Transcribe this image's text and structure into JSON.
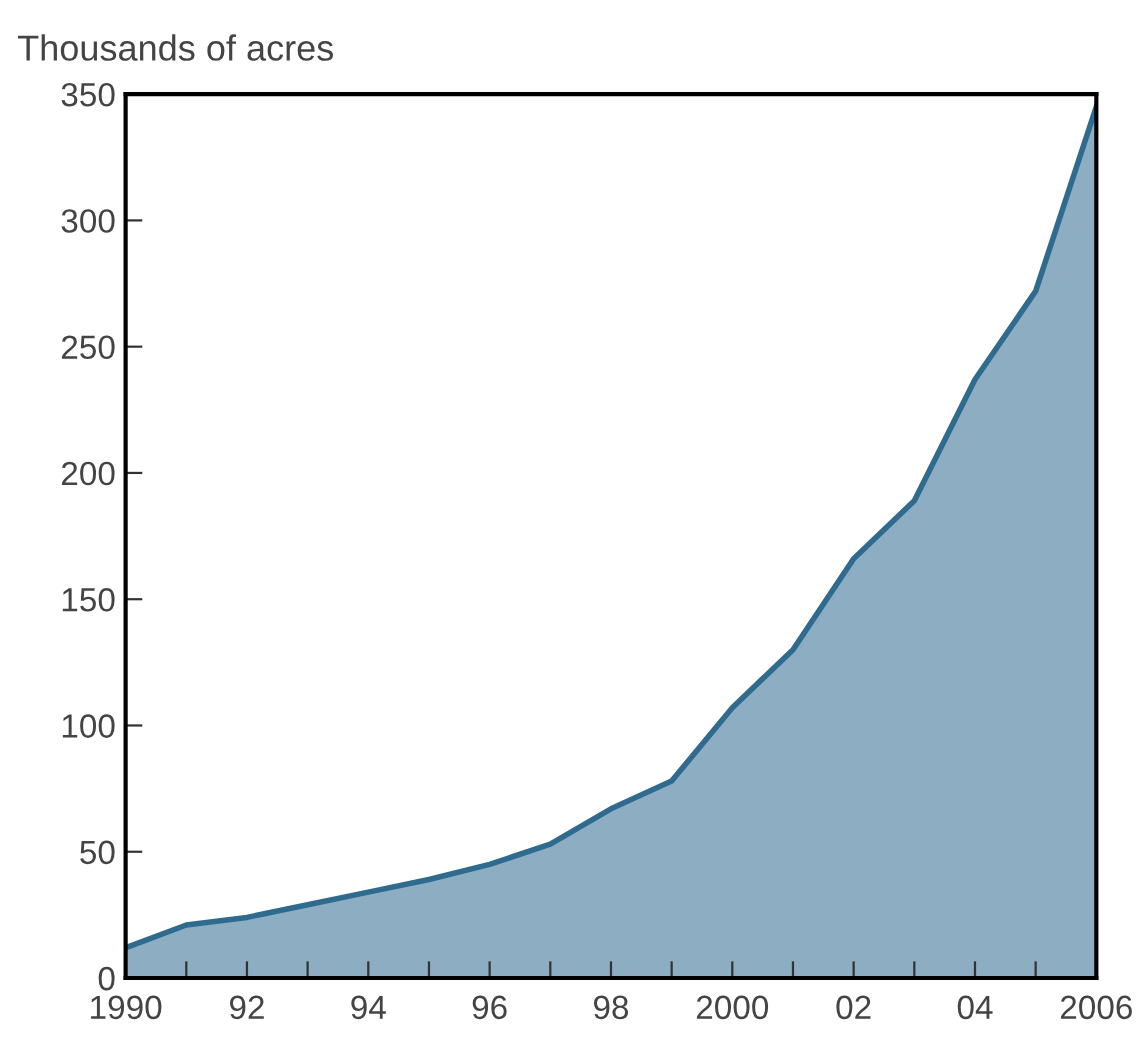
{
  "chart_data": {
    "type": "area",
    "ylabel": "Thousands of acres",
    "x": [
      1990,
      1991,
      1992,
      1993,
      1994,
      1995,
      1996,
      1997,
      1998,
      1999,
      2000,
      2001,
      2002,
      2003,
      2004,
      2005,
      2006
    ],
    "series": [
      {
        "color": "#2f6a8f",
        "values": [
          12,
          21,
          24,
          29,
          34,
          39,
          45,
          53,
          67,
          78,
          107,
          130,
          166,
          189,
          237,
          272,
          345
        ]
      }
    ],
    "xlim": [
      1990,
      2006
    ],
    "ylim": [
      0,
      350
    ],
    "xticks": [
      1990,
      {
        "value": 1991,
        "label": null
      },
      {
        "value": 1992,
        "label": "92"
      },
      {
        "value": 1993,
        "label": null
      },
      {
        "value": 1994,
        "label": "94"
      },
      {
        "value": 1995,
        "label": null
      },
      {
        "value": 1996,
        "label": "96"
      },
      {
        "value": 1997,
        "label": null
      },
      {
        "value": 1998,
        "label": "98"
      },
      {
        "value": 1999,
        "label": null
      },
      2000,
      {
        "value": 2001,
        "label": null
      },
      {
        "value": 2002,
        "label": "02"
      },
      {
        "value": 2003,
        "label": null
      },
      {
        "value": 2004,
        "label": "04"
      },
      {
        "value": 2005,
        "label": null
      },
      2006
    ],
    "yticks": [
      0,
      50,
      100,
      150,
      200,
      250,
      300,
      350
    ],
    "grid": false
  }
}
